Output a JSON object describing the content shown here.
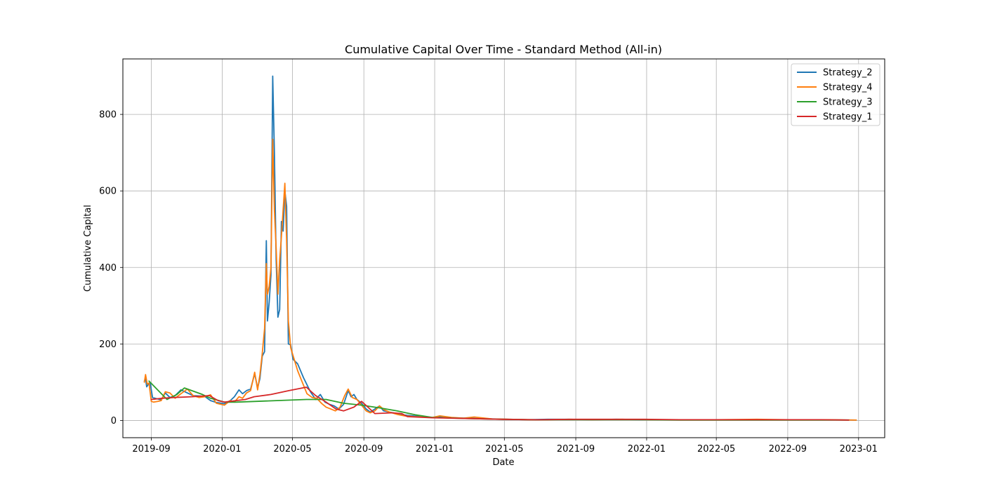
{
  "chart_data": {
    "type": "line",
    "title": "Cumulative Capital Over Time - Standard Method (All-in)",
    "xlabel": "Date",
    "ylabel": "Cumulative Capital",
    "xlim": [
      "2019-07-14",
      "2023-02-15"
    ],
    "ylim": [
      -45,
      945
    ],
    "x_ticks": [
      "2019-09-01",
      "2020-01-01",
      "2020-05-01",
      "2020-09-01",
      "2021-01-01",
      "2021-05-01",
      "2021-09-01",
      "2022-01-01",
      "2022-05-01",
      "2022-09-01",
      "2023-01-01"
    ],
    "x_tick_labels": [
      "2019-09",
      "2020-01",
      "2020-05",
      "2020-09",
      "2021-01",
      "2021-05",
      "2021-09",
      "2022-01",
      "2022-05",
      "2022-09",
      "2023-01"
    ],
    "y_ticks": [
      0,
      200,
      400,
      600,
      800
    ],
    "y_tick_labels": [
      "0",
      "200",
      "400",
      "600",
      "800"
    ],
    "grid": true,
    "legend_position": "top-right",
    "series": [
      {
        "name": "Strategy_2",
        "color": "#1f77b4",
        "points": [
          [
            "2019-08-20",
            103
          ],
          [
            "2019-08-22",
            110
          ],
          [
            "2019-08-24",
            88
          ],
          [
            "2019-08-27",
            95
          ],
          [
            "2019-08-30",
            99
          ],
          [
            "2019-09-03",
            60
          ],
          [
            "2019-09-10",
            57
          ],
          [
            "2019-09-18",
            54
          ],
          [
            "2019-09-25",
            72
          ],
          [
            "2019-10-03",
            60
          ],
          [
            "2019-10-12",
            65
          ],
          [
            "2019-10-22",
            80
          ],
          [
            "2019-11-02",
            72
          ],
          [
            "2019-11-12",
            65
          ],
          [
            "2019-11-22",
            64
          ],
          [
            "2019-12-02",
            63
          ],
          [
            "2019-12-12",
            52
          ],
          [
            "2019-12-22",
            47
          ],
          [
            "2020-01-05",
            44
          ],
          [
            "2020-01-15",
            52
          ],
          [
            "2020-01-22",
            62
          ],
          [
            "2020-01-30",
            80
          ],
          [
            "2020-02-05",
            70
          ],
          [
            "2020-02-12",
            78
          ],
          [
            "2020-02-19",
            82
          ],
          [
            "2020-02-26",
            122
          ],
          [
            "2020-03-02",
            85
          ],
          [
            "2020-03-06",
            110
          ],
          [
            "2020-03-10",
            168
          ],
          [
            "2020-03-14",
            180
          ],
          [
            "2020-03-17",
            470
          ],
          [
            "2020-03-19",
            260
          ],
          [
            "2020-03-22",
            310
          ],
          [
            "2020-03-25",
            380
          ],
          [
            "2020-03-28",
            900
          ],
          [
            "2020-03-31",
            700
          ],
          [
            "2020-04-03",
            420
          ],
          [
            "2020-04-06",
            270
          ],
          [
            "2020-04-09",
            290
          ],
          [
            "2020-04-12",
            520
          ],
          [
            "2020-04-15",
            495
          ],
          [
            "2020-04-18",
            600
          ],
          [
            "2020-04-21",
            560
          ],
          [
            "2020-04-24",
            200
          ],
          [
            "2020-04-28",
            198
          ],
          [
            "2020-05-02",
            160
          ],
          [
            "2020-05-10",
            148
          ],
          [
            "2020-05-20",
            112
          ],
          [
            "2020-06-01",
            75
          ],
          [
            "2020-06-10",
            55
          ],
          [
            "2020-06-18",
            68
          ],
          [
            "2020-06-26",
            48
          ],
          [
            "2020-07-04",
            42
          ],
          [
            "2020-07-12",
            38
          ],
          [
            "2020-07-20",
            30
          ],
          [
            "2020-07-28",
            42
          ],
          [
            "2020-08-05",
            78
          ],
          [
            "2020-08-10",
            62
          ],
          [
            "2020-08-15",
            68
          ],
          [
            "2020-08-20",
            55
          ],
          [
            "2020-08-28",
            45
          ],
          [
            "2020-09-05",
            30
          ],
          [
            "2020-09-12",
            22
          ],
          [
            "2020-09-20",
            30
          ],
          [
            "2020-09-28",
            38
          ],
          [
            "2020-10-05",
            25
          ],
          [
            "2020-10-15",
            22
          ],
          [
            "2020-10-28",
            18
          ],
          [
            "2020-11-10",
            14
          ],
          [
            "2020-11-25",
            12
          ],
          [
            "2020-12-10",
            10
          ],
          [
            "2020-12-28",
            8
          ],
          [
            "2021-01-10",
            10
          ],
          [
            "2021-01-30",
            7
          ],
          [
            "2021-02-20",
            6
          ],
          [
            "2021-03-15",
            5
          ],
          [
            "2021-04-10",
            4
          ],
          [
            "2021-05-10",
            3
          ],
          [
            "2021-06-10",
            2
          ],
          [
            "2021-07-15",
            3
          ],
          [
            "2021-08-20",
            3
          ],
          [
            "2021-09-30",
            2
          ],
          [
            "2021-11-10",
            3
          ],
          [
            "2021-12-20",
            2
          ],
          [
            "2022-02-01",
            2
          ],
          [
            "2022-03-20",
            2
          ],
          [
            "2022-05-01",
            2
          ],
          [
            "2022-06-15",
            2
          ],
          [
            "2022-08-01",
            2
          ],
          [
            "2022-09-15",
            2
          ],
          [
            "2022-11-01",
            2
          ],
          [
            "2022-12-28",
            1
          ]
        ]
      },
      {
        "name": "Strategy_4",
        "color": "#ff7f0e",
        "points": [
          [
            "2019-08-20",
            100
          ],
          [
            "2019-08-22",
            120
          ],
          [
            "2019-08-25",
            95
          ],
          [
            "2019-08-28",
            98
          ],
          [
            "2019-09-01",
            50
          ],
          [
            "2019-09-05",
            48
          ],
          [
            "2019-09-12",
            50
          ],
          [
            "2019-09-18",
            52
          ],
          [
            "2019-09-25",
            75
          ],
          [
            "2019-10-03",
            72
          ],
          [
            "2019-10-12",
            58
          ],
          [
            "2019-10-22",
            70
          ],
          [
            "2019-11-02",
            82
          ],
          [
            "2019-11-12",
            65
          ],
          [
            "2019-11-22",
            60
          ],
          [
            "2019-12-02",
            62
          ],
          [
            "2019-12-12",
            67
          ],
          [
            "2019-12-22",
            45
          ],
          [
            "2020-01-05",
            40
          ],
          [
            "2020-01-15",
            52
          ],
          [
            "2020-01-22",
            48
          ],
          [
            "2020-01-30",
            62
          ],
          [
            "2020-02-05",
            58
          ],
          [
            "2020-02-12",
            72
          ],
          [
            "2020-02-19",
            78
          ],
          [
            "2020-02-26",
            126
          ],
          [
            "2020-03-02",
            80
          ],
          [
            "2020-03-06",
            120
          ],
          [
            "2020-03-10",
            175
          ],
          [
            "2020-03-14",
            240
          ],
          [
            "2020-03-17",
            410
          ],
          [
            "2020-03-19",
            330
          ],
          [
            "2020-03-22",
            350
          ],
          [
            "2020-03-25",
            400
          ],
          [
            "2020-03-28",
            735
          ],
          [
            "2020-03-31",
            550
          ],
          [
            "2020-04-03",
            450
          ],
          [
            "2020-04-06",
            330
          ],
          [
            "2020-04-09",
            420
          ],
          [
            "2020-04-12",
            480
          ],
          [
            "2020-04-15",
            550
          ],
          [
            "2020-04-18",
            620
          ],
          [
            "2020-04-21",
            470
          ],
          [
            "2020-04-24",
            260
          ],
          [
            "2020-04-28",
            190
          ],
          [
            "2020-05-02",
            170
          ],
          [
            "2020-05-10",
            130
          ],
          [
            "2020-05-18",
            100
          ],
          [
            "2020-05-26",
            70
          ],
          [
            "2020-06-04",
            60
          ],
          [
            "2020-06-12",
            58
          ],
          [
            "2020-06-20",
            45
          ],
          [
            "2020-06-28",
            35
          ],
          [
            "2020-07-06",
            30
          ],
          [
            "2020-07-14",
            25
          ],
          [
            "2020-07-22",
            35
          ],
          [
            "2020-07-30",
            65
          ],
          [
            "2020-08-05",
            82
          ],
          [
            "2020-08-12",
            60
          ],
          [
            "2020-08-20",
            55
          ],
          [
            "2020-08-28",
            40
          ],
          [
            "2020-09-05",
            25
          ],
          [
            "2020-09-12",
            20
          ],
          [
            "2020-09-20",
            25
          ],
          [
            "2020-09-28",
            38
          ],
          [
            "2020-10-06",
            28
          ],
          [
            "2020-10-15",
            22
          ],
          [
            "2020-10-28",
            16
          ],
          [
            "2020-11-10",
            12
          ],
          [
            "2020-11-25",
            10
          ],
          [
            "2020-12-10",
            9
          ],
          [
            "2020-12-28",
            8
          ],
          [
            "2021-01-10",
            12
          ],
          [
            "2021-01-30",
            8
          ],
          [
            "2021-02-20",
            6
          ],
          [
            "2021-03-10",
            9
          ],
          [
            "2021-04-10",
            4
          ],
          [
            "2021-05-10",
            3
          ],
          [
            "2021-06-10",
            2
          ],
          [
            "2021-07-15",
            2
          ],
          [
            "2021-08-20",
            3
          ],
          [
            "2021-09-30",
            2
          ],
          [
            "2021-11-20",
            3
          ],
          [
            "2022-01-10",
            2
          ],
          [
            "2022-03-01",
            2
          ],
          [
            "2022-05-01",
            2
          ],
          [
            "2022-07-10",
            3
          ],
          [
            "2022-09-01",
            2
          ],
          [
            "2022-11-01",
            2
          ],
          [
            "2022-12-28",
            1
          ]
        ]
      },
      {
        "name": "Strategy_3",
        "color": "#2ca02c",
        "points": [
          [
            "2019-08-28",
            103
          ],
          [
            "2019-09-15",
            75
          ],
          [
            "2019-09-28",
            55
          ],
          [
            "2019-10-15",
            68
          ],
          [
            "2019-10-28",
            85
          ],
          [
            "2019-11-28",
            68
          ],
          [
            "2019-12-12",
            58
          ],
          [
            "2020-01-05",
            48
          ],
          [
            "2020-01-25",
            48
          ],
          [
            "2020-05-25",
            55
          ],
          [
            "2020-06-28",
            55
          ],
          [
            "2020-07-28",
            45
          ],
          [
            "2020-08-28",
            40
          ],
          [
            "2020-09-28",
            33
          ],
          [
            "2020-10-28",
            25
          ],
          [
            "2020-11-28",
            15
          ],
          [
            "2020-12-28",
            8
          ],
          [
            "2021-02-28",
            5
          ],
          [
            "2021-04-28",
            3
          ],
          [
            "2021-06-28",
            2
          ],
          [
            "2021-08-28",
            2
          ],
          [
            "2021-10-28",
            2
          ],
          [
            "2021-12-28",
            2
          ],
          [
            "2022-02-28",
            1
          ],
          [
            "2022-04-28",
            1
          ],
          [
            "2022-06-28",
            1
          ],
          [
            "2022-08-28",
            1
          ],
          [
            "2022-10-28",
            1
          ],
          [
            "2022-12-15",
            1
          ]
        ]
      },
      {
        "name": "Strategy_1",
        "color": "#d62728",
        "points": [
          [
            "2019-09-01",
            55
          ],
          [
            "2019-09-20",
            58
          ],
          [
            "2019-10-10",
            60
          ],
          [
            "2019-11-10",
            62
          ],
          [
            "2019-12-10",
            65
          ],
          [
            "2019-12-25",
            52
          ],
          [
            "2020-01-05",
            48
          ],
          [
            "2020-01-25",
            52
          ],
          [
            "2020-02-10",
            55
          ],
          [
            "2020-02-25",
            62
          ],
          [
            "2020-03-25",
            68
          ],
          [
            "2020-04-25",
            78
          ],
          [
            "2020-05-25",
            87
          ],
          [
            "2020-06-10",
            65
          ],
          [
            "2020-06-28",
            48
          ],
          [
            "2020-07-15",
            30
          ],
          [
            "2020-07-28",
            25
          ],
          [
            "2020-08-15",
            35
          ],
          [
            "2020-08-28",
            50
          ],
          [
            "2020-09-08",
            35
          ],
          [
            "2020-09-20",
            18
          ],
          [
            "2020-10-20",
            20
          ],
          [
            "2020-11-05",
            18
          ],
          [
            "2020-11-15",
            10
          ],
          [
            "2020-12-28",
            7
          ],
          [
            "2021-02-28",
            5
          ],
          [
            "2021-04-28",
            3
          ],
          [
            "2021-06-28",
            2
          ],
          [
            "2021-08-28",
            3
          ],
          [
            "2021-10-28",
            3
          ],
          [
            "2021-12-28",
            3
          ],
          [
            "2022-02-28",
            2
          ],
          [
            "2022-04-28",
            2
          ],
          [
            "2022-06-28",
            2
          ],
          [
            "2022-08-28",
            2
          ],
          [
            "2022-10-28",
            2
          ],
          [
            "2022-12-15",
            1
          ]
        ]
      }
    ]
  }
}
